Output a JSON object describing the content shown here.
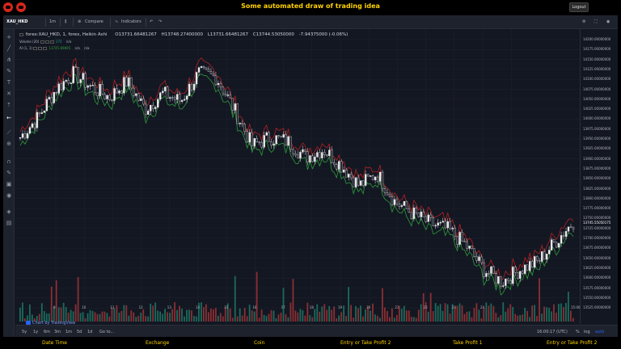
{
  "banner": {
    "title": "Some automated draw of trading idea",
    "logout_label": "Logout"
  },
  "toolbar": {
    "symbol": "XAU_HKD",
    "interval": "1m",
    "compare_label": "Compare",
    "indicators_label": "Indicators",
    "icons": [
      "candle-style-icon",
      "undo-icon",
      "redo-icon",
      "settings-icon",
      "fullscreen-icon",
      "camera-icon"
    ]
  },
  "legend": {
    "main": "forex:XAU_HKD, 1, forex, Heikin Ashi",
    "open": "O13731.66481267",
    "high": "H13748.27400000",
    "low": "L13731.66481267",
    "close": "C13744.53050000",
    "change": "-7.94375000 (-0.06%)",
    "volume_label": "Volume (20)",
    "volume_value": "172",
    "volume_na": "n/a",
    "ai_label": "AI (1, 1)",
    "ai_value": "13745.89895",
    "ai_na1": "n/a",
    "ai_na2": "n/a"
  },
  "price_axis": {
    "ticks": [
      "14200.00000000",
      "14175.00000000",
      "14150.00000000",
      "14125.00000000",
      "14100.00000000",
      "14075.00000000",
      "14050.00000000",
      "14025.00000000",
      "14000.00000000",
      "13975.00000000",
      "13950.00000000",
      "13925.00000000",
      "13900.00000000",
      "13875.00000000",
      "13850.00000000",
      "13825.00000000",
      "13800.00000000",
      "13775.00000000",
      "13750.00000000",
      "13725.00000000",
      "13700.00000000",
      "13675.00000000",
      "13650.00000000",
      "13625.00000000",
      "13600.00000000",
      "13575.00000000",
      "13550.00000000",
      "13525.00000000"
    ],
    "last_price": "13745.55050175"
  },
  "time_axis": {
    "labels": [
      "9",
      "10",
      "11",
      "12",
      "13",
      "14",
      "15",
      "16",
      "17",
      "18",
      "19",
      "20",
      "21",
      "22",
      "23",
      "24",
      "15:00"
    ]
  },
  "bottom_bar": {
    "ranges": [
      "5y",
      "1y",
      "6m",
      "3m",
      "1m",
      "5d",
      "1d"
    ],
    "goto_label": "Go to...",
    "clock": "16:00:17 (UTC)",
    "percent_label": "%",
    "log_label": "log",
    "auto_label": "auto"
  },
  "watermark": "Chart by TradingView",
  "footer": {
    "labels": [
      "Date Time",
      "Exchange",
      "Coin",
      "Entry or Take Profit 2",
      "Take Profit 1",
      "Entry or Take Profit 2"
    ]
  },
  "colors": {
    "up": "#26a69a",
    "down": "#ef5350",
    "ha_line_up": "#2e9b3a",
    "ha_line_down": "#b22222",
    "accent": "#ffd200",
    "background": "#131722"
  },
  "chart_data": {
    "type": "candlestick",
    "title": "",
    "xlabel": "",
    "ylabel": "",
    "ylim": [
      13525,
      14200
    ],
    "grid": true,
    "x": [
      9,
      9.5,
      10,
      10.5,
      11,
      11.5,
      12,
      12.5,
      13,
      13.5,
      14,
      14.5,
      15,
      15.5,
      16,
      16.5,
      17,
      17.5,
      18,
      18.5,
      19,
      19.5,
      20,
      20.5,
      21,
      21.5,
      22,
      22.5,
      23,
      23.5,
      24,
      24.5
    ],
    "y": [
      13950,
      14000,
      14070,
      14110,
      14075,
      14050,
      14090,
      14020,
      14060,
      14040,
      14110,
      14100,
      14020,
      13930,
      13950,
      13940,
      13900,
      13920,
      13880,
      13830,
      13860,
      13790,
      13760,
      13735,
      13720,
      13680,
      13620,
      13590,
      13620,
      13640,
      13690,
      13740
    ]
  }
}
